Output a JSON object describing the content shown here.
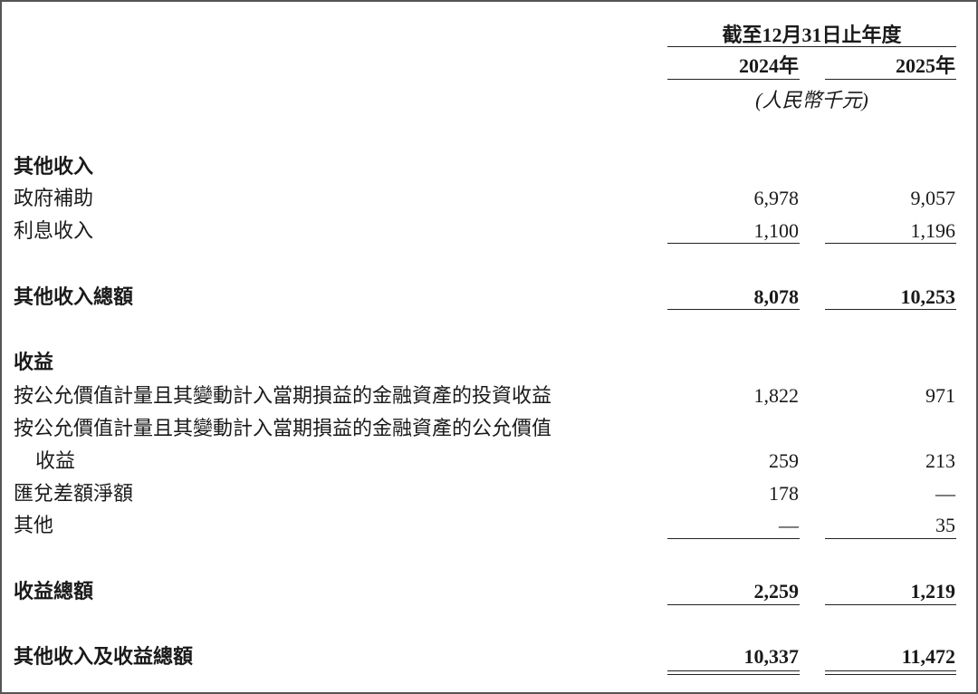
{
  "header": {
    "period": "截至12月31日止年度",
    "years": [
      "2024年",
      "2025年"
    ],
    "unit": "(人民幣千元)"
  },
  "rows": [
    {
      "label": "其他收入",
      "bold": true,
      "v2024": "",
      "v2025": ""
    },
    {
      "label": "政府補助",
      "v2024": "6,978",
      "v2025": "9,057"
    },
    {
      "label": "利息收入",
      "v2024": "1,100",
      "v2025": "1,196"
    },
    {
      "label": "其他收入總額",
      "bold": true,
      "v2024": "8,078",
      "v2025": "10,253"
    },
    {
      "label": "收益",
      "bold": true,
      "v2024": "",
      "v2025": ""
    },
    {
      "label": "按公允價值計量且其變動計入當期損益的金融資產的投資收益",
      "v2024": "1,822",
      "v2025": "971"
    },
    {
      "label": "按公允價值計量且其變動計入當期損益的金融資產的公允價值",
      "v2024": "",
      "v2025": ""
    },
    {
      "label": "收益",
      "indent": true,
      "v2024": "259",
      "v2025": "213"
    },
    {
      "label": "匯兌差額淨額",
      "v2024": "178",
      "v2025": "—"
    },
    {
      "label": "其他",
      "v2024": "—",
      "v2025": "35"
    },
    {
      "label": "收益總額",
      "bold": true,
      "v2024": "2,259",
      "v2025": "1,219"
    },
    {
      "label": "其他收入及收益總額",
      "bold": true,
      "v2024": "10,337",
      "v2025": "11,472"
    }
  ]
}
